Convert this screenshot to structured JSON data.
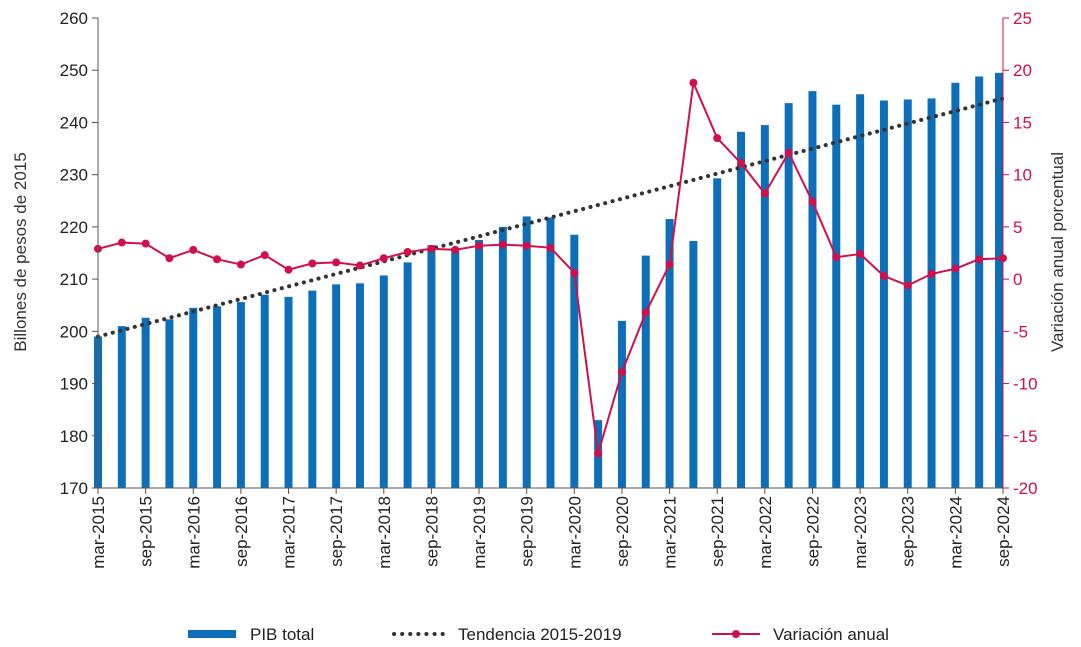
{
  "chart_data": {
    "type": "bar+line",
    "categories": [
      "mar-2015",
      "jun-2015",
      "sep-2015",
      "dic-2015",
      "mar-2016",
      "jun-2016",
      "sep-2016",
      "dic-2016",
      "mar-2017",
      "jun-2017",
      "sep-2017",
      "dic-2017",
      "mar-2018",
      "jun-2018",
      "sep-2018",
      "dic-2018",
      "mar-2019",
      "jun-2019",
      "sep-2019",
      "dic-2019",
      "mar-2020",
      "jun-2020",
      "sep-2020",
      "dic-2020",
      "mar-2021",
      "jun-2021",
      "sep-2021",
      "dic-2021",
      "mar-2022",
      "jun-2022",
      "sep-2022",
      "dic-2022",
      "mar-2023",
      "jun-2023",
      "sep-2023",
      "dic-2023",
      "mar-2024",
      "jun-2024",
      "sep-2024"
    ],
    "tick_labels": [
      "mar-2015",
      "sep-2015",
      "mar-2016",
      "sep-2016",
      "mar-2017",
      "sep-2017",
      "mar-2018",
      "sep-2018",
      "mar-2019",
      "sep-2019",
      "mar-2020",
      "sep-2020",
      "mar-2021",
      "sep-2021",
      "mar-2022",
      "sep-2022",
      "mar-2023",
      "sep-2023",
      "mar-2024",
      "sep-2024"
    ],
    "series": [
      {
        "name": "PIB total",
        "kind": "bar",
        "axis": "left",
        "color": "#0d6fba",
        "values": [
          199.0,
          201.0,
          202.6,
          202.3,
          204.5,
          204.8,
          205.6,
          207.0,
          206.6,
          207.8,
          209.0,
          209.2,
          210.7,
          213.2,
          216.5,
          216.0,
          217.5,
          220.0,
          222.0,
          221.8,
          218.5,
          183.0,
          202.0,
          214.5,
          221.5,
          217.3,
          229.3,
          238.2,
          239.5,
          243.7,
          246.0,
          243.4,
          245.4,
          244.2,
          244.4,
          244.6,
          247.6,
          248.8,
          249.5
        ]
      },
      {
        "name": "Tendencia 2015-2019",
        "kind": "dotted-line",
        "axis": "left",
        "color": "#333333",
        "values": [
          199.0,
          200.2,
          201.4,
          202.6,
          203.8,
          205.0,
          206.2,
          207.4,
          208.6,
          209.8,
          211.0,
          212.2,
          213.4,
          214.6,
          215.8,
          217.0,
          218.2,
          219.4,
          220.6,
          221.8,
          223.0,
          224.2,
          225.4,
          226.6,
          227.8,
          229.0,
          230.2,
          231.4,
          232.6,
          233.8,
          235.0,
          236.2,
          237.4,
          238.6,
          239.8,
          241.0,
          242.2,
          243.4,
          244.6
        ]
      },
      {
        "name": "Variación anual",
        "kind": "line-marker",
        "axis": "right",
        "color": "#d0104c",
        "values": [
          2.9,
          3.5,
          3.4,
          2.0,
          2.8,
          1.9,
          1.4,
          2.3,
          0.9,
          1.5,
          1.6,
          1.3,
          2.0,
          2.6,
          2.9,
          2.8,
          3.2,
          3.3,
          3.2,
          3.0,
          0.6,
          -16.7,
          -8.9,
          -3.2,
          1.4,
          18.8,
          13.5,
          11.1,
          8.2,
          12.1,
          7.4,
          2.1,
          2.4,
          0.3,
          -0.6,
          0.5,
          1.0,
          1.9,
          2.0
        ]
      }
    ],
    "ylabel": "Billones de pesos de 2015",
    "ylabel_right": "Variación anual porcentual",
    "ylim": [
      170,
      260
    ],
    "ylim_right": [
      -20,
      25
    ],
    "yticks": [
      "170",
      "180",
      "190",
      "200",
      "210",
      "220",
      "230",
      "240",
      "250",
      "260"
    ],
    "yticks_right": [
      "-20",
      "-15",
      "-10",
      "-5",
      "0",
      "5",
      "10",
      "15",
      "20",
      "25"
    ],
    "grid": false,
    "legend_position": "bottom"
  },
  "colors": {
    "bar": "#0d6fba",
    "line": "#d0104c",
    "trend": "#333333",
    "axis": "#555555"
  }
}
